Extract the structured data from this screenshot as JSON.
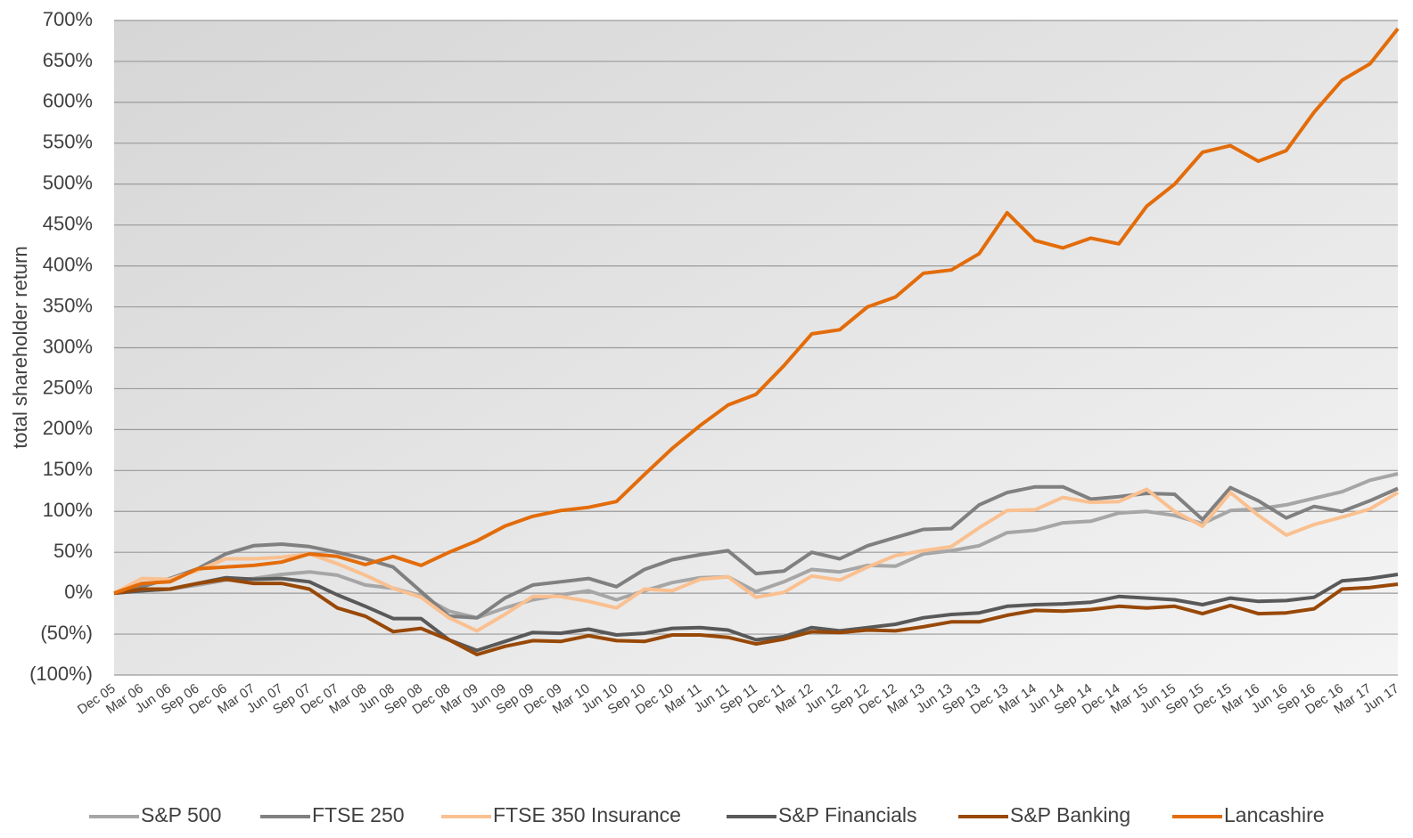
{
  "chart_data": {
    "type": "line",
    "ylabel": "total shareholder return",
    "categories": [
      "Dec 05",
      "Mar 06",
      "Jun 06",
      "Sep 06",
      "Dec 06",
      "Mar 07",
      "Jun 07",
      "Sep 07",
      "Dec 07",
      "Mar 08",
      "Jun 08",
      "Sep 08",
      "Dec 08",
      "Mar 09",
      "Jun 09",
      "Sep 09",
      "Dec 09",
      "Mar 10",
      "Jun 10",
      "Sep 10",
      "Dec 10",
      "Mar 11",
      "Jun 11",
      "Sep 11",
      "Dec 11",
      "Mar 12",
      "Jun 12",
      "Sep 12",
      "Dec 12",
      "Mar 13",
      "Jun 13",
      "Sep 13",
      "Dec 13",
      "Mar 14",
      "Jun 14",
      "Sep 14",
      "Dec 14",
      "Mar 15",
      "Jun 15",
      "Sep 15",
      "Dec 15",
      "Mar 16",
      "Jun 16",
      "Sep 16",
      "Dec 16",
      "Mar 17",
      "Jun 17"
    ],
    "series": [
      {
        "name": "S&P 500",
        "color": "#a6a6a6",
        "values": [
          0,
          3,
          5,
          10,
          16,
          18,
          23,
          26,
          22,
          10,
          6,
          -3,
          -22,
          -30,
          -18,
          -8,
          -2,
          3,
          -8,
          3,
          13,
          19,
          20,
          2,
          14,
          29,
          26,
          34,
          33,
          48,
          52,
          58,
          74,
          77,
          86,
          88,
          98,
          100,
          95,
          85,
          101,
          103,
          108,
          116,
          124,
          138,
          146
        ]
      },
      {
        "name": "FTSE 250",
        "color": "#808080",
        "values": [
          0,
          8,
          18,
          30,
          48,
          58,
          60,
          57,
          50,
          42,
          32,
          2,
          -28,
          -30,
          -6,
          10,
          14,
          18,
          8,
          29,
          41,
          47,
          52,
          24,
          27,
          50,
          42,
          58,
          68,
          78,
          79,
          108,
          123,
          130,
          130,
          115,
          118,
          122,
          121,
          90,
          129,
          113,
          92,
          106,
          100,
          113,
          128
        ]
      },
      {
        "name": "FTSE 350 Insurance",
        "color": "#fac090",
        "values": [
          0,
          18,
          17,
          28,
          42,
          42,
          44,
          48,
          36,
          22,
          6,
          -5,
          -30,
          -46,
          -26,
          -4,
          -4,
          -10,
          -18,
          5,
          3,
          17,
          20,
          -5,
          1,
          21,
          16,
          32,
          46,
          52,
          57,
          80,
          101,
          102,
          117,
          111,
          112,
          127,
          100,
          82,
          123,
          95,
          71,
          84,
          93,
          103,
          123
        ]
      },
      {
        "name": "S&P Financials",
        "color": "#595959",
        "values": [
          0,
          3,
          5,
          12,
          19,
          17,
          18,
          14,
          -2,
          -16,
          -31,
          -31,
          -57,
          -70,
          -59,
          -48,
          -49,
          -44,
          -51,
          -49,
          -43,
          -42,
          -45,
          -57,
          -53,
          -42,
          -46,
          -42,
          -38,
          -30,
          -26,
          -24,
          -16,
          -14,
          -13,
          -11,
          -4,
          -6,
          -8,
          -14,
          -6,
          -10,
          -9,
          -5,
          15,
          18,
          23
        ]
      },
      {
        "name": "S&P Banking",
        "color": "#984807",
        "values": [
          0,
          5,
          5,
          12,
          17,
          12,
          12,
          5,
          -18,
          -28,
          -47,
          -43,
          -57,
          -75,
          -65,
          -58,
          -59,
          -52,
          -58,
          -59,
          -51,
          -51,
          -54,
          -62,
          -56,
          -47,
          -48,
          -45,
          -46,
          -41,
          -35,
          -35,
          -27,
          -21,
          -22,
          -20,
          -16,
          -18,
          -16,
          -25,
          -15,
          -25,
          -24,
          -19,
          5,
          7,
          11
        ]
      },
      {
        "name": "Lancashire",
        "color": "#e36c0a",
        "values": [
          0,
          12,
          14,
          30,
          32,
          34,
          38,
          48,
          45,
          35,
          45,
          34,
          50,
          64,
          82,
          94,
          101,
          105,
          112,
          145,
          177,
          205,
          230,
          243,
          278,
          317,
          322,
          350,
          362,
          391,
          395,
          415,
          465,
          431,
          422,
          434,
          427,
          473,
          500,
          539,
          547,
          528,
          541,
          588,
          627,
          647,
          690
        ]
      }
    ],
    "ylim": [
      -100,
      700
    ],
    "yticks": [
      {
        "value": 700,
        "label": "700%"
      },
      {
        "value": 650,
        "label": "650%"
      },
      {
        "value": 600,
        "label": "600%"
      },
      {
        "value": 550,
        "label": "550%"
      },
      {
        "value": 500,
        "label": "500%"
      },
      {
        "value": 450,
        "label": "450%"
      },
      {
        "value": 400,
        "label": "400%"
      },
      {
        "value": 350,
        "label": "350%"
      },
      {
        "value": 300,
        "label": "300%"
      },
      {
        "value": 250,
        "label": "250%"
      },
      {
        "value": 200,
        "label": "200%"
      },
      {
        "value": 150,
        "label": "150%"
      },
      {
        "value": 100,
        "label": "100%"
      },
      {
        "value": 50,
        "label": "50%"
      },
      {
        "value": 0,
        "label": "0%"
      },
      {
        "value": -50,
        "label": "(50%)"
      },
      {
        "value": -100,
        "label": "(100%)"
      }
    ],
    "grid": true,
    "legend": "bottom"
  }
}
